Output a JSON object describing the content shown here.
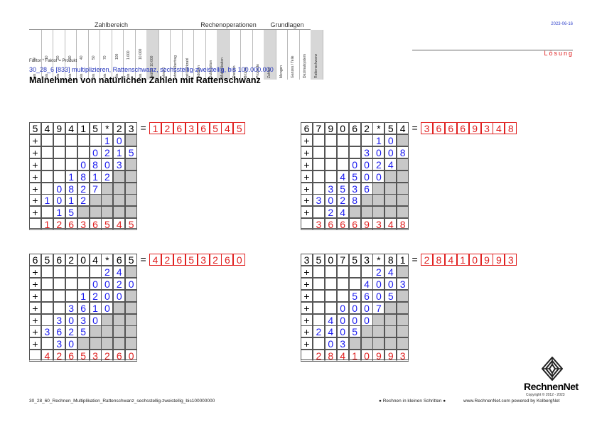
{
  "header": {
    "groups": [
      "Zahlbereich",
      "Rechenoperationen",
      "Grundlagen"
    ],
    "zahlbereich_top": [
      "9",
      "10",
      "20",
      "30",
      "40",
      "50",
      "70",
      "100",
      "1.000",
      "10.000"
    ],
    "zahlbereich_bottom": [
      "bis",
      "bis",
      "bis",
      "bis",
      "bis",
      "bis",
      "bis",
      "bis",
      "bis",
      "bis"
    ],
    "extra_cols": [
      "größer 10.000",
      "ohne 0",
      "ohne Übertrag",
      "mit Merkzahl"
    ],
    "rechen_cols": [
      "Addition",
      "Subtraktion",
      "Multiplikation",
      "Division",
      "Brüche",
      "Prozente"
    ],
    "grund_cols": [
      "Zahlen",
      "Mengen",
      "Ganzes / Teile",
      "Dezimalsystem",
      "Rattenschwanz"
    ]
  },
  "date": "2023-06-16",
  "loesung": "Lösung",
  "faktor_note": "Faktor * Faktor = Produkt",
  "subtitle": "30_28_6   [833]   multiplizieren, Rattenschwanz, sechsstellig-zweistellig, bis 100.000.000",
  "title": "Malnehmen von natürlichen Zahlen mit Rattenschwanz",
  "footer": {
    "left": "30_28_60_Rechnen_Multiplikation_Rattenschwanz_sechsstellig-zweistellig_bis100000000",
    "mid": "● Rechnen in kleinen Schritten ●",
    "right": "www.RechnenNet.com powered by KolbergNet",
    "logo": "RechnenNet",
    "copyright": "Copyright © 2012 - 2023"
  },
  "problems": [
    {
      "top": [
        "5",
        "4",
        "9",
        "4",
        "1",
        "5",
        "*",
        "2",
        "3"
      ],
      "equals": "=",
      "result": [
        "1",
        "2",
        "6",
        "3",
        "6",
        "5",
        "4",
        "5"
      ],
      "rows": [
        [
          "+",
          "",
          "",
          "",
          "",
          "",
          "1",
          "0",
          ""
        ],
        [
          "+",
          "",
          "",
          "",
          "",
          "0",
          "2",
          "1",
          "5"
        ],
        [
          "+",
          "",
          "",
          "",
          "0",
          "8",
          "0",
          "3",
          ""
        ],
        [
          "+",
          "",
          "",
          "1",
          "8",
          "1",
          "2",
          "",
          ""
        ],
        [
          "+",
          "",
          "0",
          "8",
          "2",
          "7",
          "",
          "",
          ""
        ],
        [
          "+",
          "1",
          "0",
          "1",
          "2",
          "",
          "",
          "",
          ""
        ],
        [
          "+",
          "",
          "1",
          "5",
          "",
          "",
          "",
          "",
          ""
        ]
      ],
      "sum": [
        "",
        "1",
        "2",
        "6",
        "3",
        "6",
        "5",
        "4",
        "5"
      ]
    },
    {
      "top": [
        "6",
        "7",
        "9",
        "0",
        "6",
        "2",
        "*",
        "5",
        "4"
      ],
      "equals": "=",
      "result": [
        "3",
        "6",
        "6",
        "6",
        "9",
        "3",
        "4",
        "8"
      ],
      "rows": [
        [
          "+",
          "",
          "",
          "",
          "",
          "",
          "1",
          "0",
          ""
        ],
        [
          "+",
          "",
          "",
          "",
          "",
          "3",
          "0",
          "0",
          "8"
        ],
        [
          "+",
          "",
          "",
          "",
          "0",
          "0",
          "2",
          "4",
          ""
        ],
        [
          "+",
          "",
          "",
          "4",
          "5",
          "0",
          "0",
          "",
          ""
        ],
        [
          "+",
          "",
          "3",
          "5",
          "3",
          "6",
          "",
          "",
          ""
        ],
        [
          "+",
          "3",
          "0",
          "2",
          "8",
          "",
          "",
          "",
          ""
        ],
        [
          "+",
          "",
          "2",
          "4",
          "",
          "",
          "",
          "",
          ""
        ]
      ],
      "sum": [
        "",
        "3",
        "6",
        "6",
        "6",
        "9",
        "3",
        "4",
        "8"
      ]
    },
    {
      "top": [
        "6",
        "5",
        "6",
        "2",
        "0",
        "4",
        "*",
        "6",
        "5"
      ],
      "equals": "=",
      "result": [
        "4",
        "2",
        "6",
        "5",
        "3",
        "2",
        "6",
        "0"
      ],
      "rows": [
        [
          "+",
          "",
          "",
          "",
          "",
          "",
          "2",
          "4",
          ""
        ],
        [
          "+",
          "",
          "",
          "",
          "",
          "0",
          "0",
          "2",
          "0"
        ],
        [
          "+",
          "",
          "",
          "",
          "1",
          "2",
          "0",
          "0",
          ""
        ],
        [
          "+",
          "",
          "",
          "3",
          "6",
          "1",
          "0",
          "",
          ""
        ],
        [
          "+",
          "",
          "3",
          "0",
          "3",
          "0",
          "",
          "",
          ""
        ],
        [
          "+",
          "3",
          "6",
          "2",
          "5",
          "",
          "",
          "",
          ""
        ],
        [
          "+",
          "",
          "3",
          "0",
          "",
          "",
          "",
          "",
          ""
        ]
      ],
      "sum": [
        "",
        "4",
        "2",
        "6",
        "5",
        "3",
        "2",
        "6",
        "0"
      ]
    },
    {
      "top": [
        "3",
        "5",
        "0",
        "7",
        "5",
        "3",
        "*",
        "8",
        "1"
      ],
      "equals": "=",
      "result": [
        "2",
        "8",
        "4",
        "1",
        "0",
        "9",
        "9",
        "3"
      ],
      "rows": [
        [
          "+",
          "",
          "",
          "",
          "",
          "",
          "2",
          "4",
          ""
        ],
        [
          "+",
          "",
          "",
          "",
          "",
          "4",
          "0",
          "0",
          "3"
        ],
        [
          "+",
          "",
          "",
          "",
          "5",
          "6",
          "0",
          "5",
          ""
        ],
        [
          "+",
          "",
          "",
          "0",
          "0",
          "0",
          "7",
          "",
          ""
        ],
        [
          "+",
          "",
          "4",
          "0",
          "0",
          "0",
          "",
          "",
          ""
        ],
        [
          "+",
          "2",
          "4",
          "0",
          "5",
          "",
          "",
          "",
          ""
        ],
        [
          "+",
          "",
          "0",
          "3",
          "",
          "",
          "",
          "",
          ""
        ]
      ],
      "sum": [
        "",
        "2",
        "8",
        "4",
        "1",
        "0",
        "9",
        "9",
        "3"
      ]
    }
  ]
}
